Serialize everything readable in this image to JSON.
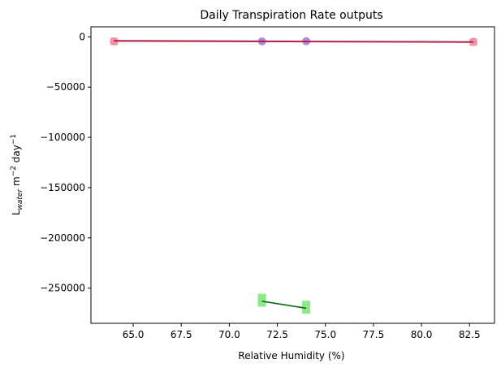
{
  "chart_data": {
    "type": "scatter",
    "title": "Daily Transpiration Rate outputs",
    "xlabel": "Relative Humidity (%)",
    "ylabel": {
      "base": "L",
      "sub": "water",
      "rest": " m",
      "sup1": "−2",
      "rest2": " day",
      "sup2": "−1"
    },
    "xlim": [
      62.8,
      83.8
    ],
    "ylim": [
      -285000,
      10000
    ],
    "xticks": [
      65.0,
      67.5,
      70.0,
      72.5,
      75.0,
      77.5,
      80.0,
      82.5
    ],
    "xtick_labels": [
      "65.0",
      "67.5",
      "70.0",
      "72.5",
      "75.0",
      "77.5",
      "80.0",
      "82.5"
    ],
    "yticks": [
      0,
      -50000,
      -100000,
      -150000,
      -200000,
      -250000
    ],
    "ytick_labels": [
      "0",
      "−50000",
      "−100000",
      "−150000",
      "−200000",
      "−250000"
    ],
    "grid": false,
    "series": [
      {
        "marker": "circle",
        "marker_color": "#b38bd9",
        "points": [
          {
            "x": 64.0,
            "y": -4500
          },
          {
            "x": 71.7,
            "y": -4500
          },
          {
            "x": 74.0,
            "y": -4300
          },
          {
            "x": 82.7,
            "y": -5000
          }
        ]
      },
      {
        "marker": "square",
        "marker_color": "#f7939f",
        "points": [
          {
            "x": 64.0,
            "y": -4600
          },
          {
            "x": 82.7,
            "y": -5300
          }
        ]
      },
      {
        "marker": "square",
        "marker_color": "#8ee88a",
        "points": [
          {
            "x": 71.7,
            "y": -262000
          },
          {
            "x": 74.0,
            "y": -269000
          }
        ]
      }
    ],
    "fit_lines": [
      {
        "color": "#1f3fae",
        "points": [
          {
            "x": 64.0,
            "y": -3800
          },
          {
            "x": 82.7,
            "y": -5000
          }
        ]
      },
      {
        "color": "#d6183a",
        "points": [
          {
            "x": 64.0,
            "y": -4200
          },
          {
            "x": 82.7,
            "y": -5300
          }
        ]
      },
      {
        "color": "#0f6b0f",
        "points": [
          {
            "x": 71.7,
            "y": -263000
          },
          {
            "x": 74.0,
            "y": -270000
          }
        ]
      }
    ]
  }
}
